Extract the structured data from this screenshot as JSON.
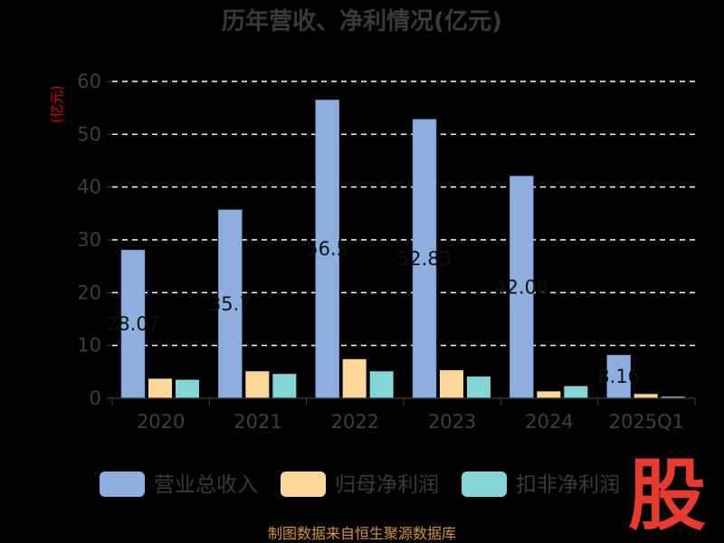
{
  "chart_data": {
    "type": "bar",
    "title": "历年营收、净利情况(亿元)",
    "ylabel": "(亿元)",
    "xlabel": "",
    "categories": [
      "2020",
      "2021",
      "2022",
      "2023",
      "2024",
      "2025Q1"
    ],
    "ylim": [
      0,
      60
    ],
    "yticks": [
      0,
      10,
      20,
      30,
      40,
      50,
      60
    ],
    "grid": true,
    "legend_position": "bottom",
    "series": [
      {
        "name": "营业总收入",
        "color": "#8eaedd",
        "values": [
          28.07,
          35.7,
          56.5,
          52.83,
          42.08,
          8.16
        ]
      },
      {
        "name": "归母净利润",
        "color": "#fcd79a",
        "values": [
          3.7,
          5.1,
          7.4,
          5.3,
          1.3,
          0.8
        ]
      },
      {
        "name": "扣非净利润",
        "color": "#85d4d6",
        "values": [
          3.5,
          4.6,
          5.1,
          4.1,
          2.3,
          0.3
        ]
      }
    ],
    "data_labels": [
      "28.07",
      "35.7",
      "56.5",
      "52.83",
      "42.08",
      "8.16"
    ]
  },
  "source": "制图数据来自恒生聚源数据库",
  "logo_text": "股",
  "colors": {
    "background": "#000000",
    "grid": "#ffffff",
    "logo": "#e63b2e",
    "source": "#d29a2e",
    "ylabel": "#d40000"
  }
}
